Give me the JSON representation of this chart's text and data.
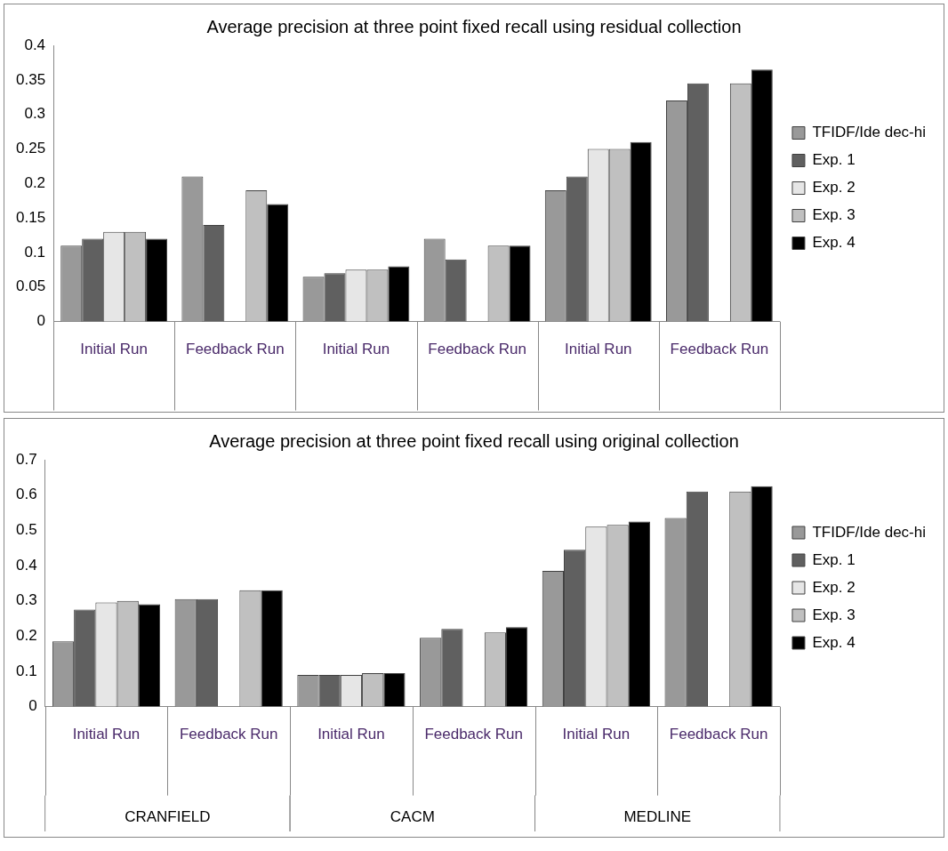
{
  "chart_data": [
    {
      "type": "bar",
      "title": "Average precision at three point fixed recall using residual collection",
      "categories": [
        "Initial Run",
        "Feedback Run",
        "Initial Run",
        "Feedback Run",
        "Initial Run",
        "Feedback Run"
      ],
      "series": [
        {
          "name": "TFIDF/Ide dec-hi",
          "color": "#999999",
          "values": [
            0.11,
            0.21,
            0.065,
            0.12,
            0.19,
            0.32
          ]
        },
        {
          "name": "Exp. 1",
          "color": "#606060",
          "values": [
            0.12,
            0.14,
            0.07,
            0.09,
            0.21,
            0.345
          ]
        },
        {
          "name": "Exp. 2",
          "color": "#e6e6e6",
          "values": [
            0.13,
            null,
            0.075,
            null,
            0.25,
            null
          ]
        },
        {
          "name": "Exp. 3",
          "color": "#c0c0c0",
          "values": [
            0.13,
            0.19,
            0.075,
            0.11,
            0.25,
            0.345
          ]
        },
        {
          "name": "Exp. 4",
          "color": "#000000",
          "values": [
            0.12,
            0.17,
            0.08,
            0.11,
            0.26,
            0.365
          ]
        }
      ],
      "ylim": [
        0,
        0.4
      ],
      "yticks": [
        0,
        0.05,
        0.1,
        0.15,
        0.2,
        0.25,
        0.3,
        0.35,
        0.4
      ],
      "legend": "right"
    },
    {
      "type": "bar",
      "title": "Average precision at three point fixed recall using original collection",
      "categories": [
        "Initial Run",
        "Feedback Run",
        "Initial Run",
        "Feedback Run",
        "Initial Run",
        "Feedback Run"
      ],
      "series": [
        {
          "name": "TFIDF/Ide dec-hi",
          "color": "#999999",
          "values": [
            0.185,
            0.305,
            0.09,
            0.195,
            0.385,
            0.535
          ]
        },
        {
          "name": "Exp. 1",
          "color": "#606060",
          "values": [
            0.275,
            0.305,
            0.09,
            0.22,
            0.445,
            0.61
          ]
        },
        {
          "name": "Exp. 2",
          "color": "#e6e6e6",
          "values": [
            0.295,
            null,
            0.09,
            null,
            0.51,
            null
          ]
        },
        {
          "name": "Exp. 3",
          "color": "#c0c0c0",
          "values": [
            0.3,
            0.33,
            0.095,
            0.21,
            0.515,
            0.61
          ]
        },
        {
          "name": "Exp. 4",
          "color": "#000000",
          "values": [
            0.29,
            0.33,
            0.095,
            0.225,
            0.525,
            0.625
          ]
        }
      ],
      "ylim": [
        0,
        0.7
      ],
      "yticks": [
        0,
        0.1,
        0.2,
        0.3,
        0.4,
        0.5,
        0.6,
        0.7
      ],
      "legend": "right",
      "annotations": [
        "CRANFIELD",
        "CACM",
        "MEDLINE"
      ]
    }
  ]
}
